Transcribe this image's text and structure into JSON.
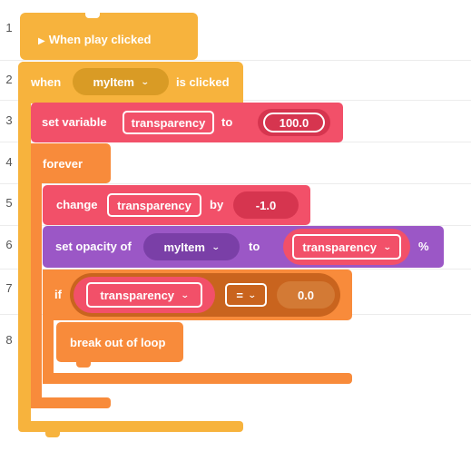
{
  "lines": [
    "1",
    "2",
    "3",
    "4",
    "5",
    "6",
    "7",
    "8"
  ],
  "colors": {
    "events": "#F7B33D",
    "events_dark": "#D99B25",
    "control": "#F88B3B",
    "control_dark": "#C9641E",
    "data": "#F25069",
    "data_dark": "#D6354F",
    "looks": "#9B57C6",
    "looks_dark": "#7A3FA7"
  },
  "blocks": {
    "when_play": {
      "icon": "play-icon",
      "label": "When play clicked"
    },
    "when_clicked": {
      "prefix": "when",
      "item": "myItem",
      "suffix": "is clicked"
    },
    "set_variable": {
      "label": "set variable",
      "variable": "transparency",
      "to": "to",
      "value": "100.0"
    },
    "forever": {
      "label": "forever"
    },
    "change": {
      "label": "change",
      "variable": "transparency",
      "by": "by",
      "value": "-1.0"
    },
    "set_opacity": {
      "label": "set opacity of",
      "item": "myItem",
      "to": "to",
      "variable": "transparency",
      "suffix": "%"
    },
    "if_block": {
      "label": "if",
      "variable": "transparency",
      "operator": "=",
      "value": "0.0"
    },
    "break": {
      "label": "break out of loop"
    }
  }
}
